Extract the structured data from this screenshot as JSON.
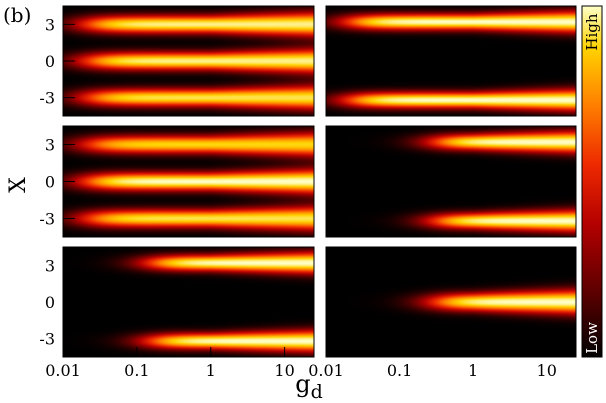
{
  "chart_data": {
    "type": "heatmap",
    "panel_label": "(b)",
    "xlabel_main": "g",
    "xlabel_sub": "d",
    "ylabel": "X",
    "x_scale": "log",
    "xlim": [
      0.01,
      25
    ],
    "ylim": [
      -4.5,
      4.5
    ],
    "xticks": [
      0.01,
      0.1,
      1,
      10
    ],
    "xtick_labels": [
      "0.01",
      "0.1",
      "1",
      "10"
    ],
    "yticks": [
      3,
      0,
      -3
    ],
    "ytick_labels": [
      "3",
      "0",
      "-3"
    ],
    "colorbar": {
      "high_label": "High",
      "low_label": "Low"
    },
    "colormap": [
      "#000000",
      "#5a0000",
      "#b40000",
      "#ee2a00",
      "#ff8000",
      "#ffd200",
      "#ffffc8"
    ],
    "panels": [
      {
        "id": "top-left",
        "components": [
          {
            "x0": 3.0,
            "spread": 0.5,
            "onset_g": 0.02,
            "amp": 0.95
          },
          {
            "x0": 0.0,
            "spread": 0.5,
            "onset_g": 0.02,
            "amp": 0.95
          },
          {
            "x0": -3.0,
            "spread": 0.5,
            "onset_g": 0.02,
            "amp": 0.9
          }
        ]
      },
      {
        "id": "top-right",
        "components": [
          {
            "x0": 3.2,
            "spread": 0.45,
            "onset_g": 0.02,
            "amp": 1.0
          },
          {
            "x0": -3.2,
            "spread": 0.45,
            "onset_g": 0.02,
            "amp": 1.0
          }
        ]
      },
      {
        "id": "middle-left",
        "components": [
          {
            "x0": 3.0,
            "spread": 0.5,
            "onset_g": 0.02,
            "amp": 0.85
          },
          {
            "x0": 0.0,
            "spread": 0.5,
            "onset_g": 0.02,
            "amp": 1.0
          },
          {
            "x0": -3.0,
            "spread": 0.5,
            "onset_g": 0.02,
            "amp": 0.9
          }
        ]
      },
      {
        "id": "middle-right",
        "components": [
          {
            "x0": 3.2,
            "spread": 0.45,
            "onset_g": 0.3,
            "amp": 1.0
          },
          {
            "x0": -3.2,
            "spread": 0.45,
            "onset_g": 0.3,
            "amp": 1.0
          }
        ]
      },
      {
        "id": "bottom-left",
        "components": [
          {
            "x0": 3.2,
            "spread": 0.45,
            "onset_g": 0.15,
            "amp": 1.0
          },
          {
            "x0": -3.2,
            "spread": 0.45,
            "onset_g": 0.15,
            "amp": 1.0
          }
        ]
      },
      {
        "id": "bottom-right",
        "components": [
          {
            "x0": 0.0,
            "spread": 0.5,
            "onset_g": 0.3,
            "amp": 1.0
          }
        ]
      }
    ]
  }
}
